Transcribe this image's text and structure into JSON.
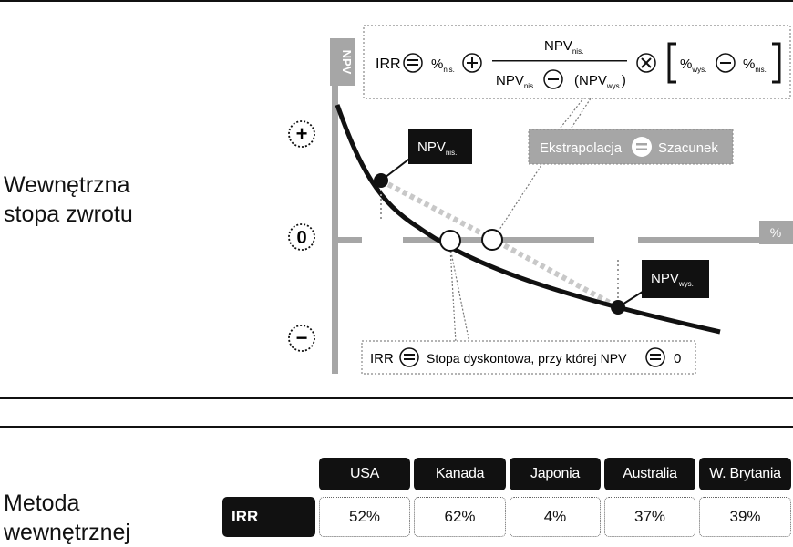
{
  "section_top": {
    "heading_line1": "Wewnętrzna",
    "heading_line2": "stopa zwrotu"
  },
  "diagram": {
    "y_axis_label": "NPV",
    "x_axis_label": "%",
    "sign_plus": "+",
    "sign_zero": "0",
    "sign_minus": "−",
    "npv_low_label": "NPV",
    "npv_low_sub": "nis.",
    "npv_high_label": "NPV",
    "npv_high_sub": "wys.",
    "extrapolation_label": "Ekstrapolacja",
    "estimate_label": "Szacunek",
    "formula": {
      "irr": "IRR",
      "pct": "%",
      "sub_low": "nis.",
      "sub_high": "wys.",
      "numerator": "NPV",
      "denominator_left": "NPV",
      "denominator_right": "(NPV",
      "close_paren": ")"
    },
    "definition": {
      "irr": "IRR",
      "text": "Stopa dyskontowa, przy której NPV",
      "value": "0"
    }
  },
  "section_bottom": {
    "heading_line1": "Metoda",
    "heading_line2": "wewnętrznej"
  },
  "table": {
    "row_label": "IRR",
    "columns": [
      "USA",
      "Kanada",
      "Japonia",
      "Australia",
      "W. Brytania"
    ],
    "values": [
      "52%",
      "62%",
      "4%",
      "37%",
      "39%"
    ]
  },
  "colors": {
    "dark": "#111111",
    "grey": "#a6a6a6",
    "light_grey": "#cfcfcf"
  }
}
